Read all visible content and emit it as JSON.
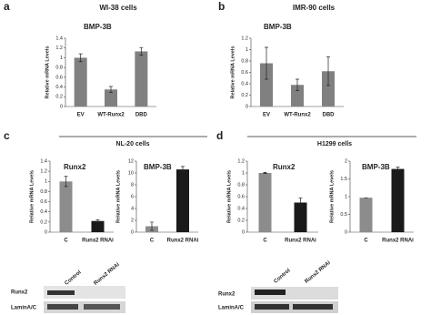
{
  "panels": [
    {
      "letter": "a",
      "cells": "WI-38 cells"
    },
    {
      "letter": "b",
      "cells": "IMR-90 cells"
    },
    {
      "letter": "c",
      "cells": "NL-20 cells"
    },
    {
      "letter": "d",
      "cells": "H1299 cells"
    }
  ],
  "blots": [
    {
      "lanes": [
        "Control",
        "Runx2 RNAi"
      ],
      "rows": [
        "Runx2",
        "LaminA/C"
      ]
    },
    {
      "lanes": [
        "Control",
        "Runx2 RNAi"
      ],
      "rows": [
        "Runx2",
        "LaminA/C"
      ]
    }
  ],
  "chart_data": [
    {
      "type": "bar",
      "title": "BMP-3B",
      "y_label": "Relative mRNA Levels",
      "categories": [
        "EV",
        "WT-Runx2",
        "DBD"
      ],
      "values": [
        1.0,
        0.35,
        1.13
      ],
      "errors": [
        0.08,
        0.06,
        0.08
      ],
      "colors": [
        "#808080",
        "#808080",
        "#808080"
      ],
      "ylim": [
        0,
        1.4
      ],
      "yticks": [
        0,
        0.2,
        0.4,
        0.6,
        0.8,
        1,
        1.2,
        1.4
      ]
    },
    {
      "type": "bar",
      "title": "BMP-3B",
      "y_label": "Relative mRNA Levels",
      "categories": [
        "EV",
        "WT-Runx2",
        "DBD"
      ],
      "values": [
        0.76,
        0.38,
        0.62
      ],
      "errors": [
        0.28,
        0.1,
        0.25
      ],
      "colors": [
        "#808080",
        "#808080",
        "#808080"
      ],
      "ylim": [
        0,
        1.2
      ],
      "yticks": [
        0,
        0.2,
        0.4,
        0.6,
        0.8,
        1,
        1.2
      ]
    },
    {
      "type": "bar",
      "title": "Runx2",
      "y_label": "Relative mRNA Levels",
      "categories": [
        "C",
        "Runx2 RNAi"
      ],
      "values": [
        1.0,
        0.22
      ],
      "errors": [
        0.1,
        0.02
      ],
      "colors": [
        "#8c8c8c",
        "#1a1a1a"
      ],
      "ylim": [
        0,
        1.4
      ],
      "yticks": [
        0,
        0.2,
        0.4,
        0.6,
        0.8,
        1,
        1.2,
        1.4
      ]
    },
    {
      "type": "bar",
      "title": "BMP-3B",
      "y_label": "Relative mRNA Levels",
      "categories": [
        "C",
        "Runx2 RNAi"
      ],
      "values": [
        1.0,
        10.6
      ],
      "errors": [
        0.7,
        0.5
      ],
      "colors": [
        "#8c8c8c",
        "#1a1a1a"
      ],
      "ylim": [
        0,
        12
      ],
      "yticks": [
        0,
        2,
        4,
        6,
        8,
        10,
        12
      ]
    },
    {
      "type": "bar",
      "title": "Runx2",
      "y_label": "Relative mRNA Levels",
      "categories": [
        "C",
        "Runx2 RNAi"
      ],
      "values": [
        1.0,
        0.5
      ],
      "errors": [
        0.01,
        0.08
      ],
      "colors": [
        "#8c8c8c",
        "#1a1a1a"
      ],
      "ylim": [
        0,
        1.2
      ],
      "yticks": [
        0,
        0.2,
        0.4,
        0.6,
        0.8,
        1,
        1.2
      ]
    },
    {
      "type": "bar",
      "title": "BMP-3B",
      "y_label": "Relative mRNA Levels",
      "categories": [
        "C",
        "Runx2 RNAi"
      ],
      "values": [
        0.97,
        1.78
      ],
      "errors": [
        0,
        0.05
      ],
      "colors": [
        "#8c8c8c",
        "#1a1a1a"
      ],
      "ylim": [
        0,
        2
      ],
      "yticks": [
        0,
        0.5,
        1,
        1.5,
        2
      ]
    }
  ]
}
